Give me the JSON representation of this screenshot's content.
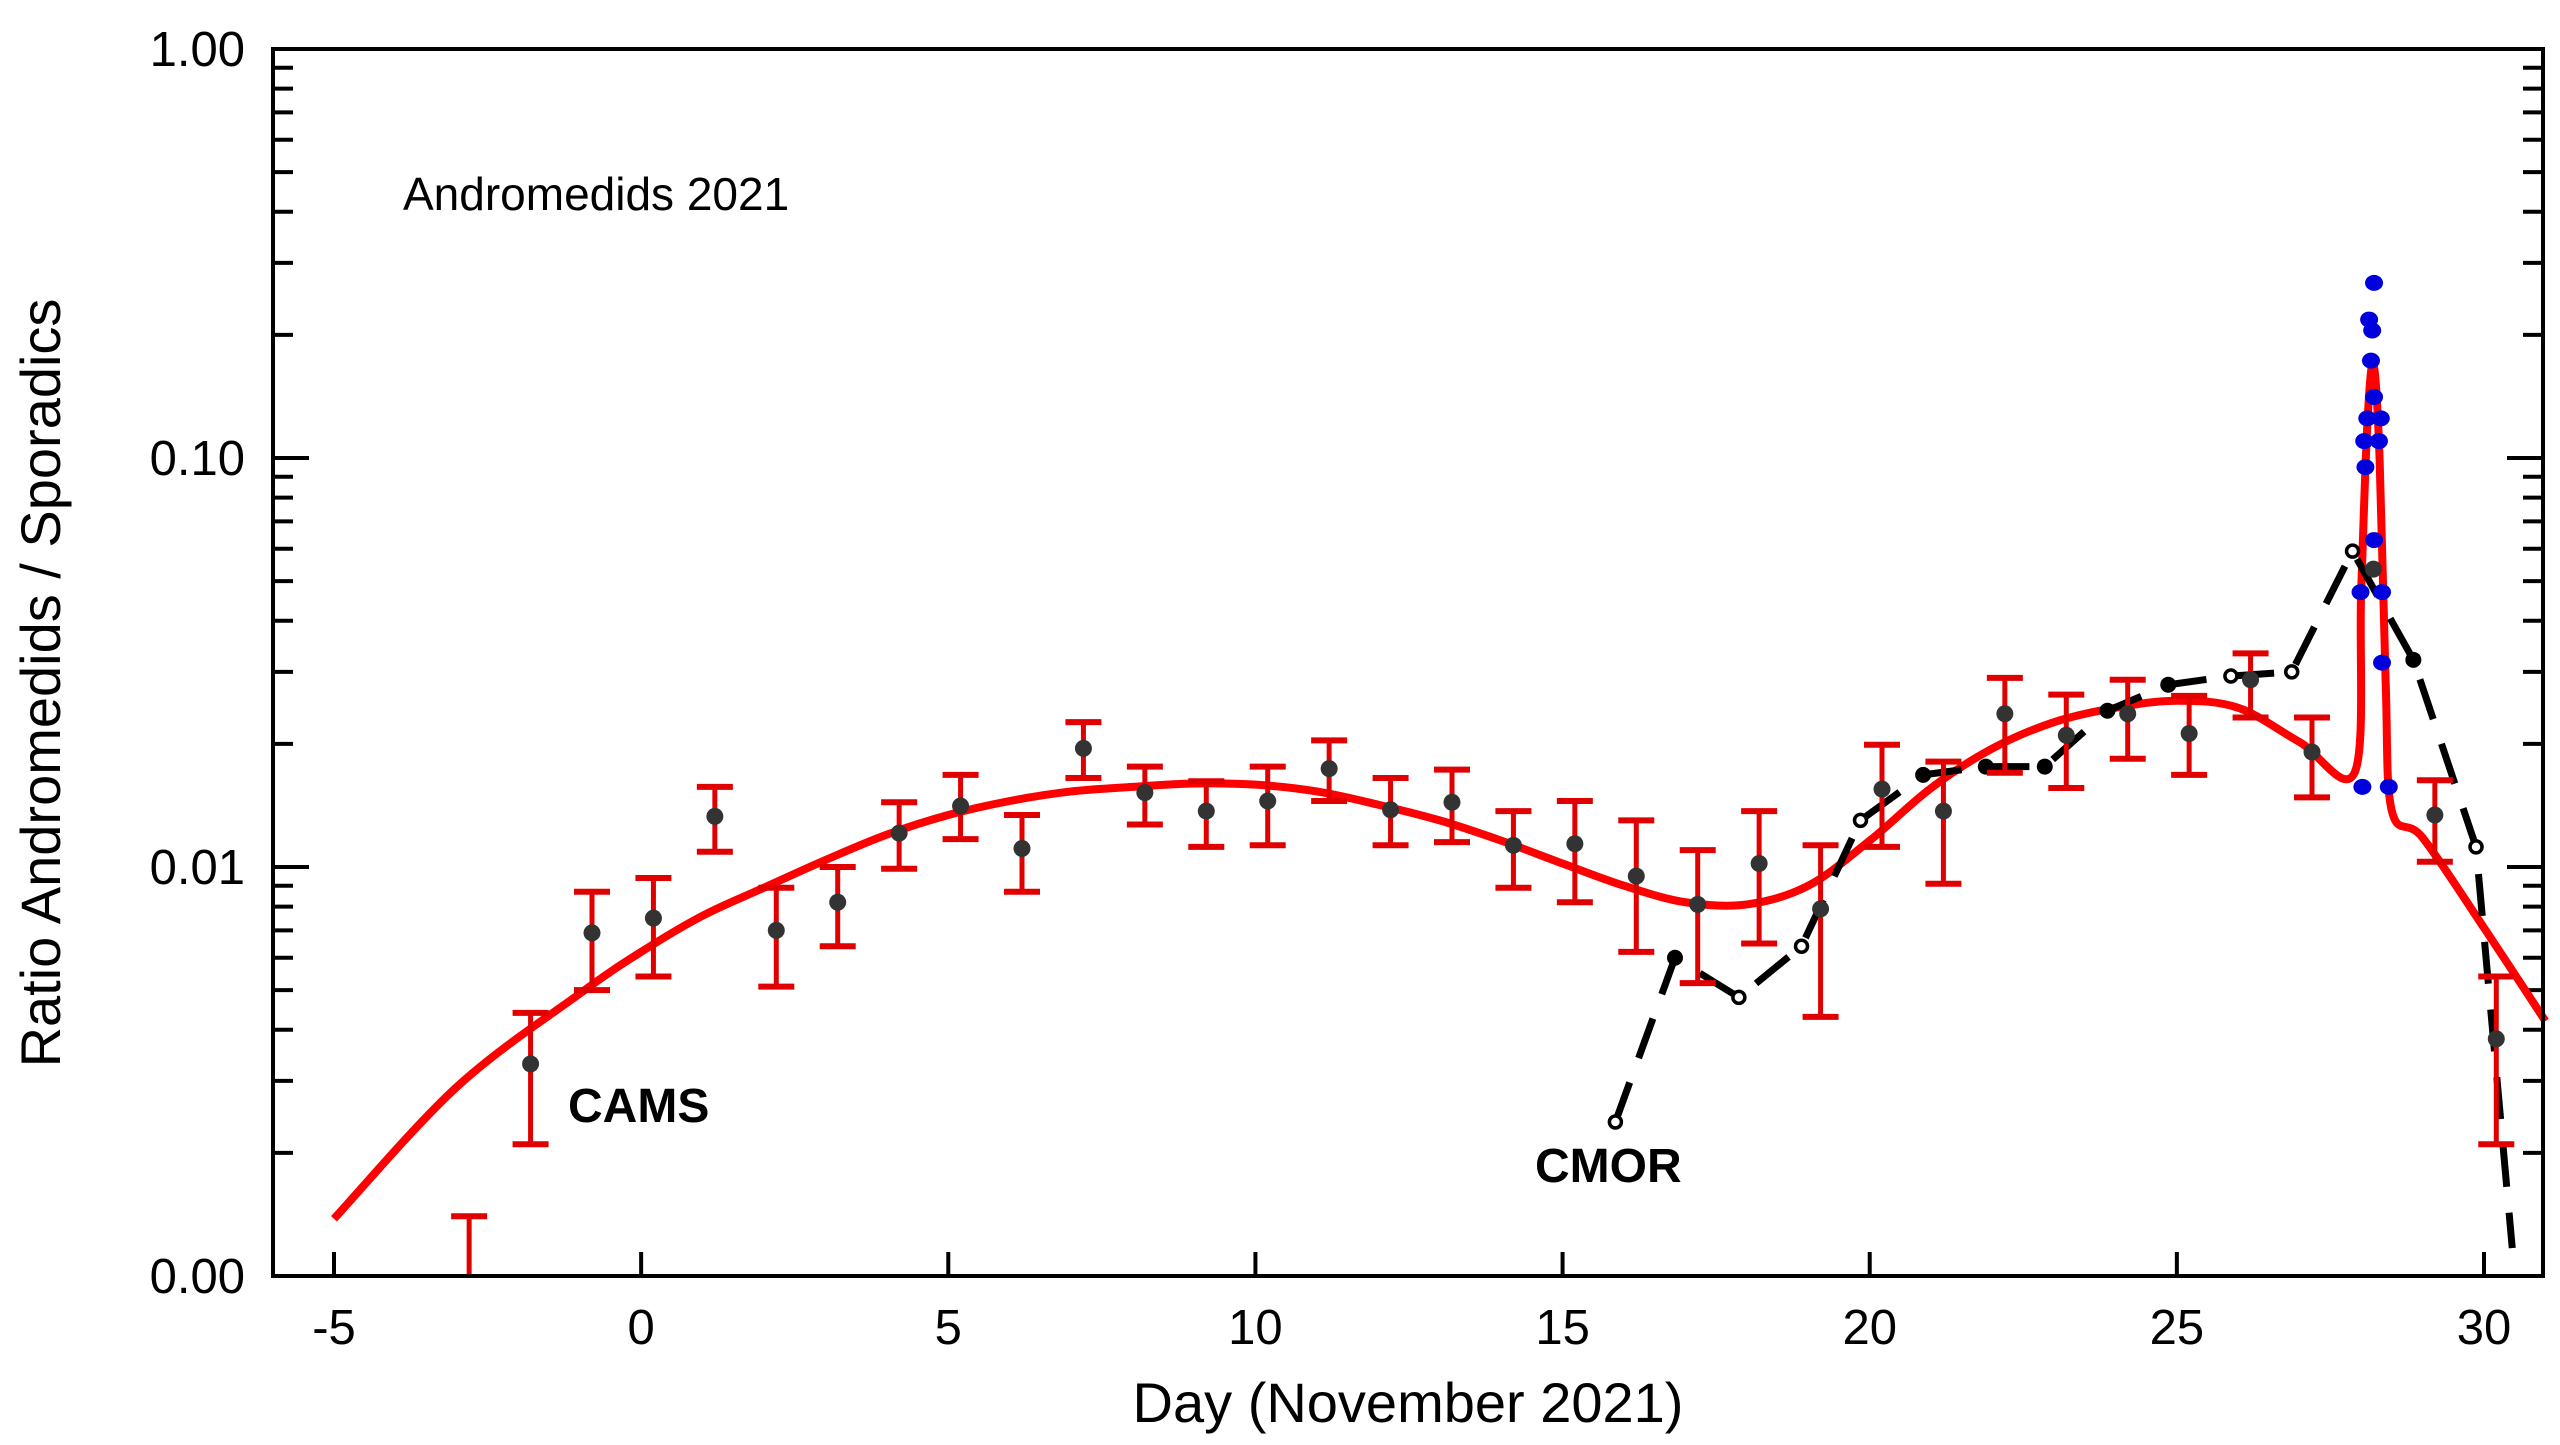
{
  "chart_data": {
    "type": "scatter",
    "title": "Andromedids 2021",
    "xlabel": "Day (November 2021)",
    "ylabel": "Ratio Andromedids / Sporadics",
    "xlim": [
      -6,
      31
    ],
    "ylim": [
      0.001,
      1.0
    ],
    "yscale": "log",
    "grid": false,
    "x_ticks": [
      -5,
      0,
      5,
      10,
      15,
      20,
      25,
      30
    ],
    "x_tick_labels": [
      "-5",
      "0",
      "5",
      "10",
      "15",
      "20",
      "25",
      "30"
    ],
    "y_ticks": [
      1.0,
      0.1,
      0.01,
      0.001
    ],
    "y_tick_labels": [
      "1.00",
      "0.10",
      "0.01",
      "0.00"
    ],
    "annotations": [
      "CAMS",
      "CMOR"
    ],
    "colors": {
      "fit": "#ff0000",
      "errorbar": "#e00000",
      "cams_point": "#333333",
      "video_point": "#0000dd",
      "cmor": "#000000"
    },
    "series": [
      {
        "name": "CAMS",
        "style": "points-with-errorbars",
        "points": [
          {
            "x": -2.8,
            "y": null,
            "hi": 0.0014,
            "lo": null
          },
          {
            "x": -1.8,
            "y": 0.0033,
            "hi": 0.0044,
            "lo": 0.0021
          },
          {
            "x": -0.8,
            "y": 0.0069,
            "hi": 0.0087,
            "lo": 0.005
          },
          {
            "x": 0.2,
            "y": 0.0075,
            "hi": 0.0094,
            "lo": 0.0054
          },
          {
            "x": 1.2,
            "y": 0.0133,
            "hi": 0.0157,
            "lo": 0.0109
          },
          {
            "x": 2.2,
            "y": 0.007,
            "hi": 0.0089,
            "lo": 0.0051
          },
          {
            "x": 3.2,
            "y": 0.0082,
            "hi": 0.01,
            "lo": 0.0064
          },
          {
            "x": 4.2,
            "y": 0.0121,
            "hi": 0.0144,
            "lo": 0.0099
          },
          {
            "x": 5.2,
            "y": 0.0141,
            "hi": 0.0168,
            "lo": 0.0117
          },
          {
            "x": 6.2,
            "y": 0.0111,
            "hi": 0.0134,
            "lo": 0.0087
          },
          {
            "x": 7.2,
            "y": 0.0195,
            "hi": 0.0226,
            "lo": 0.0165
          },
          {
            "x": 8.2,
            "y": 0.0152,
            "hi": 0.0176,
            "lo": 0.0127
          },
          {
            "x": 9.2,
            "y": 0.0137,
            "hi": 0.0162,
            "lo": 0.0112
          },
          {
            "x": 10.2,
            "y": 0.0145,
            "hi": 0.0176,
            "lo": 0.0113
          },
          {
            "x": 11.2,
            "y": 0.0174,
            "hi": 0.0204,
            "lo": 0.0145
          },
          {
            "x": 12.2,
            "y": 0.0138,
            "hi": 0.0165,
            "lo": 0.0113
          },
          {
            "x": 13.2,
            "y": 0.0144,
            "hi": 0.0173,
            "lo": 0.0115
          },
          {
            "x": 14.2,
            "y": 0.0113,
            "hi": 0.0137,
            "lo": 0.0089
          },
          {
            "x": 15.2,
            "y": 0.0114,
            "hi": 0.0145,
            "lo": 0.0082
          },
          {
            "x": 16.2,
            "y": 0.0095,
            "hi": 0.013,
            "lo": 0.0062
          },
          {
            "x": 17.2,
            "y": 0.0081,
            "hi": 0.011,
            "lo": 0.0052
          },
          {
            "x": 18.2,
            "y": 0.0102,
            "hi": 0.0137,
            "lo": 0.0065
          },
          {
            "x": 19.2,
            "y": 0.0079,
            "hi": 0.0113,
            "lo": 0.0043
          },
          {
            "x": 20.2,
            "y": 0.0155,
            "hi": 0.0199,
            "lo": 0.0112
          },
          {
            "x": 21.2,
            "y": 0.0137,
            "hi": 0.0181,
            "lo": 0.0091
          },
          {
            "x": 22.2,
            "y": 0.0237,
            "hi": 0.029,
            "lo": 0.017
          },
          {
            "x": 23.2,
            "y": 0.021,
            "hi": 0.0264,
            "lo": 0.0156
          },
          {
            "x": 24.2,
            "y": 0.0237,
            "hi": 0.0287,
            "lo": 0.0184
          },
          {
            "x": 25.2,
            "y": 0.0212,
            "hi": 0.0262,
            "lo": 0.0168
          },
          {
            "x": 26.2,
            "y": 0.0287,
            "hi": 0.0333,
            "lo": 0.0232
          },
          {
            "x": 27.2,
            "y": 0.0191,
            "hi": 0.0232,
            "lo": 0.0148
          },
          {
            "x": 28.2,
            "y": 0.0535,
            "hi": null,
            "lo": null
          },
          {
            "x": 29.2,
            "y": 0.0134,
            "hi": 0.0163,
            "lo": 0.0103
          },
          {
            "x": 30.2,
            "y": 0.0038,
            "hi": 0.0054,
            "lo": 0.0021
          }
        ]
      },
      {
        "name": "CMOR",
        "style": "dashed-line-with-markers",
        "points": [
          {
            "x": 15.86,
            "y": 0.00238,
            "marker": "open"
          },
          {
            "x": 16.83,
            "y": 0.006,
            "marker": "filled"
          },
          {
            "x": 17.87,
            "y": 0.0048,
            "marker": "open"
          },
          {
            "x": 18.89,
            "y": 0.0064,
            "marker": "open"
          },
          {
            "x": 19.85,
            "y": 0.013,
            "marker": "open"
          },
          {
            "x": 20.87,
            "y": 0.0168,
            "marker": "filled"
          },
          {
            "x": 21.89,
            "y": 0.0176,
            "marker": "filled"
          },
          {
            "x": 22.85,
            "y": 0.0176,
            "marker": "filled"
          },
          {
            "x": 23.87,
            "y": 0.0241,
            "marker": "filled"
          },
          {
            "x": 24.86,
            "y": 0.0279,
            "marker": "filled"
          },
          {
            "x": 25.88,
            "y": 0.0293,
            "marker": "open"
          },
          {
            "x": 26.87,
            "y": 0.03,
            "marker": "open"
          },
          {
            "x": 27.86,
            "y": 0.0592,
            "marker": "open"
          },
          {
            "x": 28.85,
            "y": 0.0321,
            "marker": "filled"
          },
          {
            "x": 29.87,
            "y": 0.0112,
            "marker": "open"
          },
          {
            "x": 30.46,
            "y": 0.00117,
            "marker": "none"
          }
        ]
      },
      {
        "style": "blue-points",
        "points": [
          {
            "x": 28.21,
            "y": 0.268
          },
          {
            "x": 28.13,
            "y": 0.218
          },
          {
            "x": 28.18,
            "y": 0.205
          },
          {
            "x": 28.16,
            "y": 0.173
          },
          {
            "x": 28.21,
            "y": 0.141
          },
          {
            "x": 28.1,
            "y": 0.125
          },
          {
            "x": 28.32,
            "y": 0.125
          },
          {
            "x": 28.05,
            "y": 0.11
          },
          {
            "x": 28.29,
            "y": 0.11
          },
          {
            "x": 28.07,
            "y": 0.095
          },
          {
            "x": 28.21,
            "y": 0.063
          },
          {
            "x": 27.99,
            "y": 0.047
          },
          {
            "x": 28.34,
            "y": 0.047
          },
          {
            "x": 28.34,
            "y": 0.0316
          },
          {
            "x": 28.02,
            "y": 0.0157
          },
          {
            "x": 28.45,
            "y": 0.0157
          }
        ]
      },
      {
        "style": "fit-curve",
        "x": [
          -5,
          -3,
          -1,
          0,
          1,
          2,
          3,
          4,
          5,
          6,
          7,
          8,
          9,
          10,
          11,
          12,
          13,
          14,
          15,
          16,
          17,
          18,
          19,
          20,
          21,
          22,
          23,
          24,
          25,
          26,
          27,
          27.9,
          28.0,
          28.1,
          28.2,
          28.3,
          28.4,
          28.5,
          29,
          30,
          31
        ],
        "y": [
          0.00138,
          0.0029,
          0.0049,
          0.0062,
          0.0076,
          0.0089,
          0.0104,
          0.012,
          0.0134,
          0.0145,
          0.0153,
          0.0157,
          0.016,
          0.0159,
          0.0153,
          0.0142,
          0.013,
          0.0116,
          0.0102,
          0.009,
          0.0082,
          0.0081,
          0.009,
          0.0116,
          0.0156,
          0.0195,
          0.0226,
          0.0245,
          0.0255,
          0.0245,
          0.0202,
          0.0171,
          0.047,
          0.12,
          0.17,
          0.1,
          0.028,
          0.0137,
          0.0118,
          0.0071,
          0.0042
        ]
      }
    ]
  }
}
